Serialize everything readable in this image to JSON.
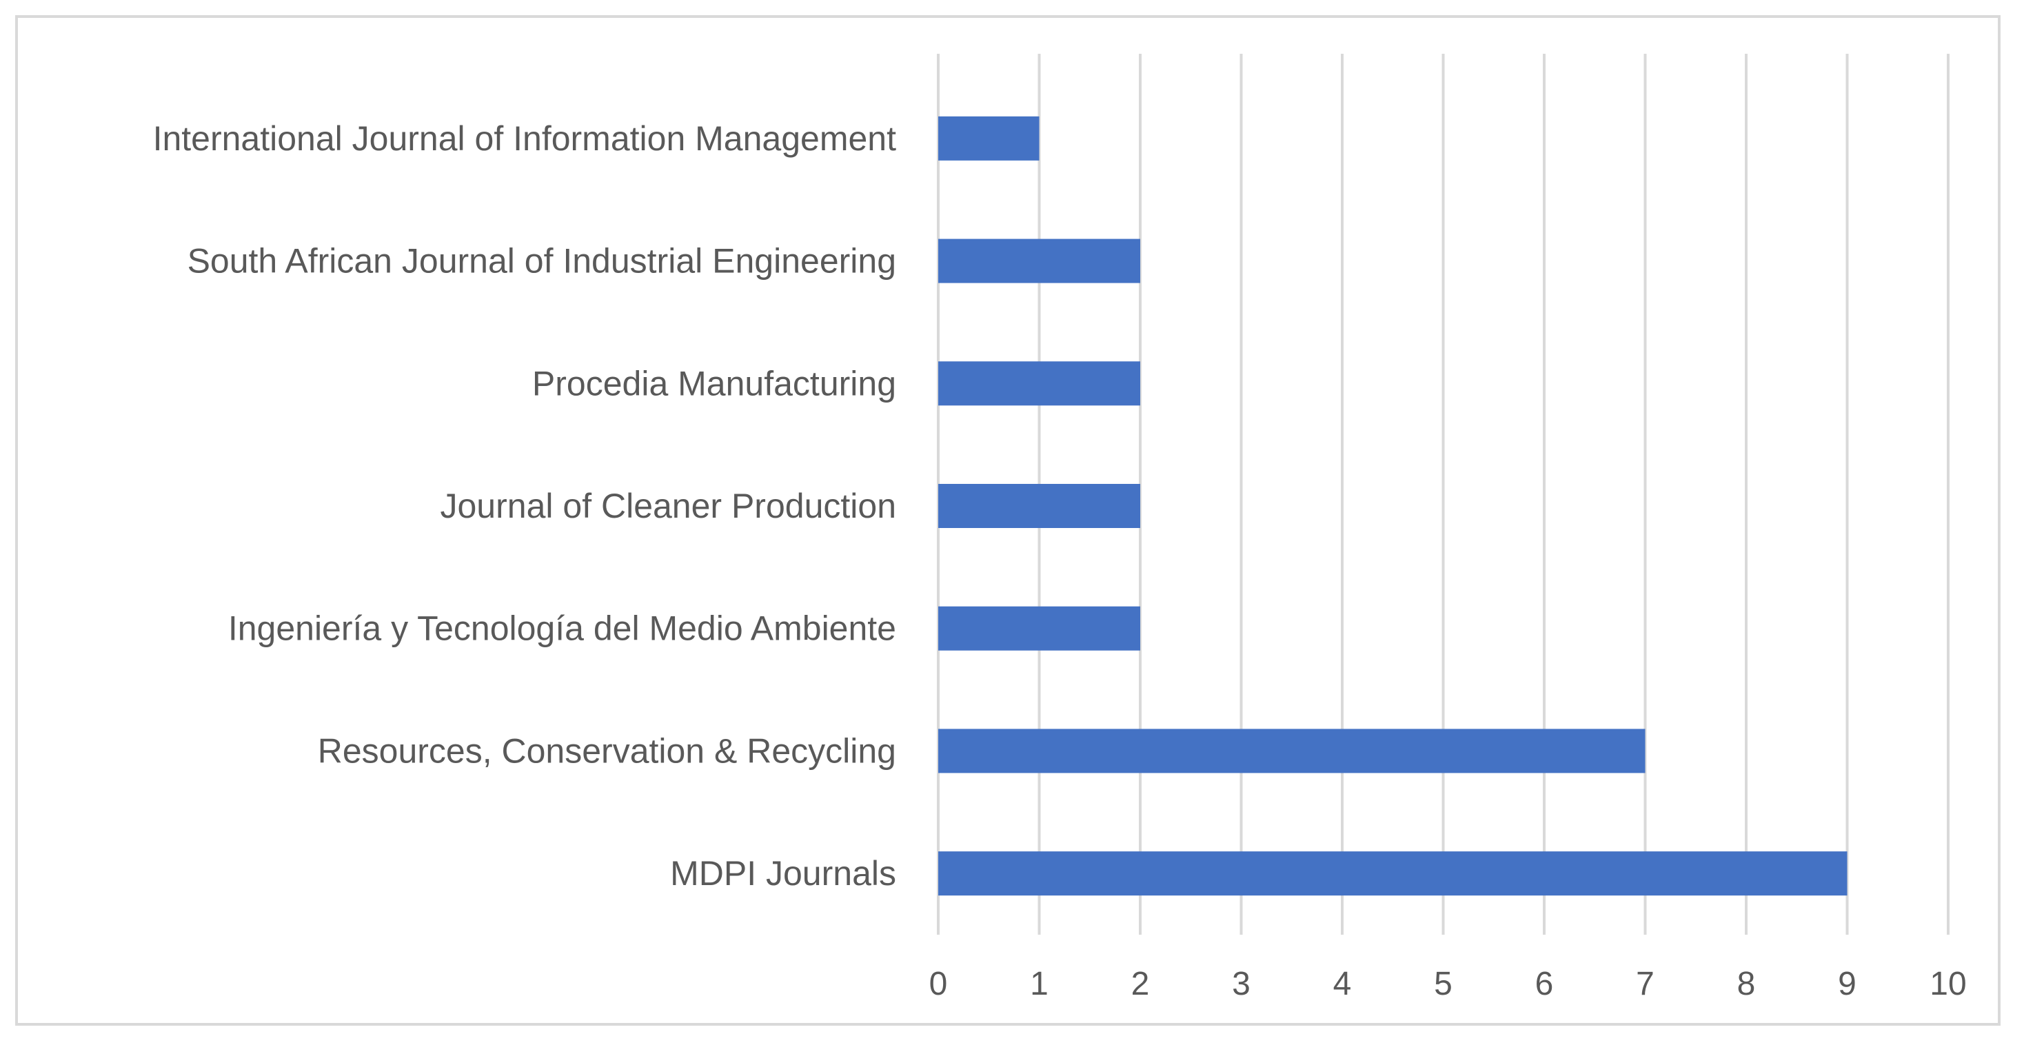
{
  "chart_data": {
    "type": "bar",
    "orientation": "horizontal",
    "title": "",
    "xlabel": "",
    "ylabel": "",
    "categories": [
      "International Journal of Information Management",
      "South African Journal of Industrial Engineering",
      "Procedia Manufacturing",
      "Journal of Cleaner Production",
      "Ingeniería y Tecnología del Medio Ambiente",
      "Resources, Conservation & Recycling",
      "MDPI Journals"
    ],
    "values": [
      1,
      2,
      2,
      2,
      2,
      7,
      9
    ],
    "xlim": [
      0,
      10
    ],
    "xticks": [
      "0",
      "1",
      "2",
      "3",
      "4",
      "5",
      "6",
      "7",
      "8",
      "9",
      "10"
    ],
    "grid": "vertical",
    "legend": "none",
    "colors": {
      "bar": "#4472c4",
      "grid": "#d9d9d9",
      "text": "#595959",
      "border": "#d9d9d9"
    }
  }
}
